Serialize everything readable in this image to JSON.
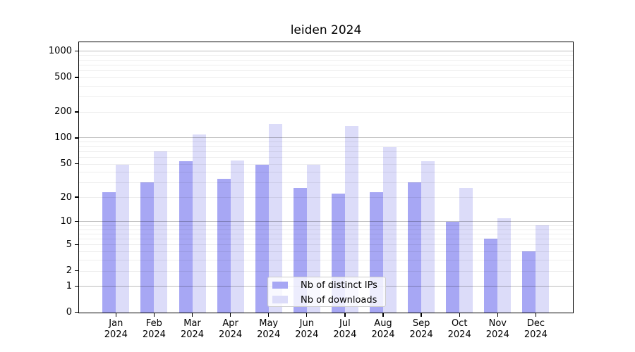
{
  "title": "leiden 2024",
  "legend": {
    "items": [
      {
        "label": "Nb of distinct IPs",
        "color": "#a7a7f4"
      },
      {
        "label": "Nb of downloads",
        "color": "#dcdcf9"
      }
    ]
  },
  "y_axis": {
    "tick_labels": [
      "0",
      "1",
      "2",
      "5",
      "10",
      "20",
      "50",
      "100",
      "200",
      "500",
      "1000"
    ]
  },
  "x_axis": {
    "tick_labels": [
      "Jan 2024",
      "Feb 2024",
      "Mar 2024",
      "Apr 2024",
      "May 2024",
      "Jun 2024",
      "Jul 2024",
      "Aug 2024",
      "Sep 2024",
      "Oct 2024",
      "Nov 2024",
      "Dec 2024"
    ]
  },
  "chart_data": {
    "type": "bar",
    "title": "leiden 2024",
    "categories": [
      "Jan 2024",
      "Feb 2024",
      "Mar 2024",
      "Apr 2024",
      "May 2024",
      "Jun 2024",
      "Jul 2024",
      "Aug 2024",
      "Sep 2024",
      "Oct 2024",
      "Nov 2024",
      "Dec 2024"
    ],
    "series": [
      {
        "name": "Nb of distinct IPs",
        "color": "#a7a7f4",
        "values": [
          23,
          30,
          53,
          33,
          49,
          26,
          22,
          23,
          30,
          10,
          6,
          4
        ]
      },
      {
        "name": "Nb of downloads",
        "color": "#dcdcf9",
        "values": [
          49,
          70,
          110,
          55,
          145,
          49,
          137,
          78,
          53,
          26,
          11,
          9
        ]
      }
    ],
    "xlabel": "",
    "ylabel": "",
    "yscale": "log10(1+x)",
    "yticks": [
      0,
      1,
      2,
      5,
      10,
      20,
      50,
      100,
      200,
      500,
      1000
    ],
    "ylim": [
      0,
      1270
    ],
    "grid": "horizontal, major at powers of 10 + minor, drawn above bars",
    "legend_position": "lower center, inside axes"
  }
}
